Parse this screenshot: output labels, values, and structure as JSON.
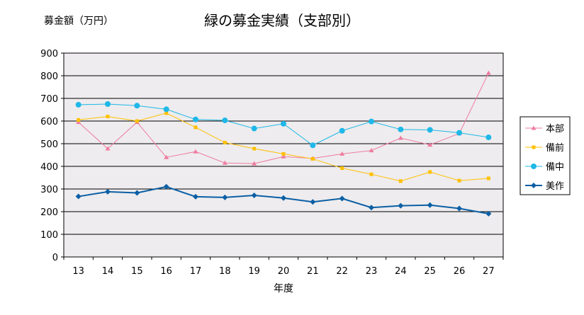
{
  "chart_data": {
    "type": "line",
    "title": "緑の募金実績（支部別）",
    "ylabel": "募金額（万円）",
    "xlabel": "年度",
    "categories": [
      "13",
      "14",
      "15",
      "16",
      "17",
      "18",
      "19",
      "20",
      "21",
      "22",
      "23",
      "24",
      "25",
      "26",
      "27"
    ],
    "ylim": [
      0,
      900
    ],
    "yticks": [
      0,
      100,
      200,
      300,
      400,
      500,
      600,
      700,
      800,
      900
    ],
    "grid": true,
    "legend_position": "right",
    "series": [
      {
        "name": "本部",
        "color": "#F07CA0",
        "marker": "triangle",
        "values": [
          595,
          478,
          595,
          440,
          465,
          415,
          412,
          443,
          435,
          455,
          470,
          525,
          495,
          545,
          812
        ]
      },
      {
        "name": "備前",
        "color": "#FFC000",
        "marker": "square",
        "values": [
          605,
          620,
          600,
          635,
          572,
          505,
          478,
          455,
          433,
          392,
          365,
          335,
          375,
          337,
          347
        ]
      },
      {
        "name": "備中",
        "color": "#1FB8E8",
        "marker": "circle",
        "values": [
          672,
          675,
          668,
          652,
          607,
          603,
          567,
          588,
          493,
          557,
          598,
          563,
          561,
          548,
          528
        ]
      },
      {
        "name": "美作",
        "color": "#0B5FA5",
        "marker": "diamond",
        "values": [
          267,
          288,
          283,
          310,
          266,
          263,
          272,
          260,
          243,
          258,
          218,
          226,
          229,
          214,
          191
        ]
      }
    ]
  }
}
